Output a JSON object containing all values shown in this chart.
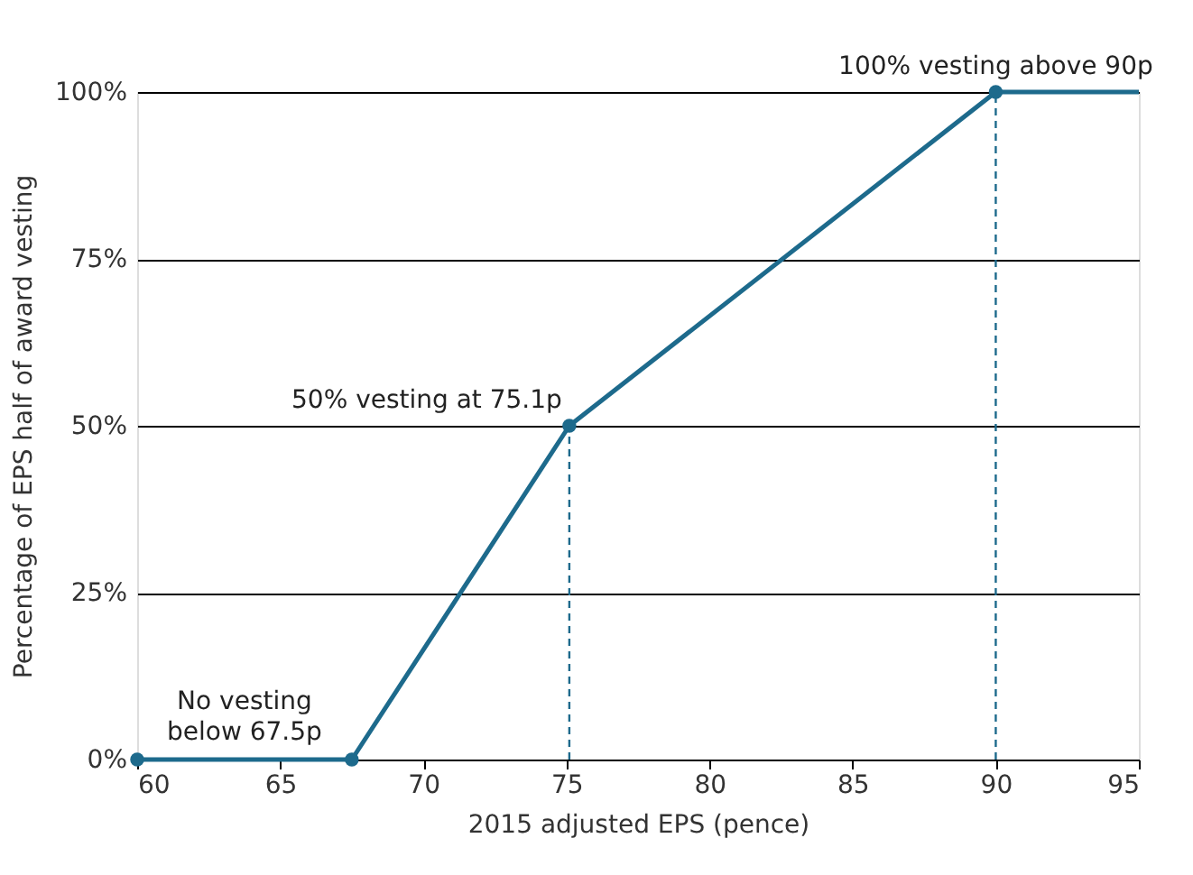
{
  "chart_data": {
    "type": "line",
    "xlabel": "2015 adjusted EPS (pence)",
    "ylabel": "Percentage of EPS half of award vesting",
    "xlim": [
      60,
      95
    ],
    "xticks": [
      60,
      65,
      70,
      75,
      80,
      85,
      90,
      95
    ],
    "ylim": [
      0,
      100
    ],
    "yticks": [
      {
        "value": 0,
        "label": "0%"
      },
      {
        "value": 25,
        "label": "25%"
      },
      {
        "value": 50,
        "label": "50%"
      },
      {
        "value": 75,
        "label": "75%"
      },
      {
        "value": 100,
        "label": "100%"
      }
    ],
    "grid": "y",
    "series": [
      {
        "color": "#1d6a8c",
        "x": [
          60,
          67.5,
          75.1,
          90,
          95
        ],
        "values": [
          0,
          0,
          50,
          100,
          100
        ],
        "marker": "none",
        "line_style": "solid"
      },
      {
        "type": "scatter",
        "color": "#1d6a8c",
        "x": [
          60,
          67.5,
          75.1,
          90
        ],
        "values": [
          0,
          0,
          50,
          100
        ],
        "marker": "circle"
      },
      {
        "type": "line",
        "color": "#1d6a8c",
        "x": [
          75.1,
          75.1
        ],
        "values": [
          0,
          50
        ],
        "marker": "none",
        "line_style": "dashed"
      },
      {
        "type": "line",
        "color": "#1d6a8c",
        "x": [
          90,
          90
        ],
        "values": [
          0,
          100
        ],
        "marker": "none",
        "line_style": "dashed"
      }
    ],
    "annotations": [
      {
        "text": "100% vesting above 90p",
        "x": 90,
        "y": 100
      },
      {
        "text": "50% vesting at 75.1p",
        "x": 75.1,
        "y": 50
      },
      {
        "text": "No vesting\nbelow 67.5p",
        "x": 63.75,
        "y": 0
      }
    ]
  }
}
